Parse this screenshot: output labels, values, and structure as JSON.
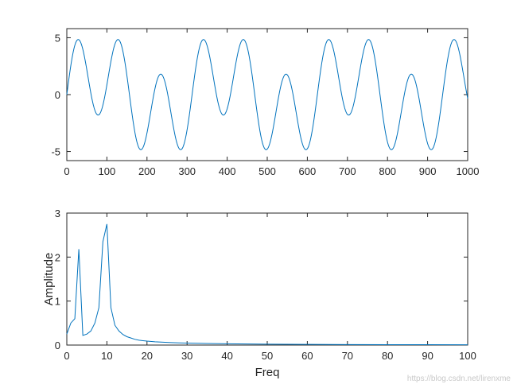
{
  "chart_data": [
    {
      "type": "line",
      "title": "",
      "xlabel": "",
      "ylabel": "",
      "xlim": [
        0,
        1000
      ],
      "ylim": [
        -5.8,
        5.8
      ],
      "x_ticks": [
        "0",
        "100",
        "200",
        "300",
        "400",
        "500",
        "600",
        "700",
        "800",
        "900",
        "1000"
      ],
      "y_ticks": [
        "-5",
        "0",
        "5"
      ],
      "grid": false,
      "color": "#0072BD",
      "series": [
        {
          "x_range": [
            0,
            1000
          ],
          "points": 1000,
          "components": [
            {
              "amplitude": 2.0,
              "cycles_per_1000": 3.2
            },
            {
              "amplitude": 3.8,
              "cycles_per_1000": 9.6
            }
          ]
        }
      ]
    },
    {
      "type": "line",
      "title": "",
      "xlabel": "Freq",
      "ylabel": "Amplitude",
      "xlim": [
        0,
        100
      ],
      "ylim": [
        0,
        3
      ],
      "x_ticks": [
        "0",
        "10",
        "20",
        "30",
        "40",
        "50",
        "60",
        "70",
        "80",
        "90",
        "100"
      ],
      "y_ticks": [
        "0",
        "1",
        "2",
        "3"
      ],
      "grid": false,
      "color": "#0072BD",
      "series": [
        {
          "x": [
            0,
            1,
            2,
            3,
            4,
            5,
            6,
            7,
            8,
            9,
            10,
            11,
            12,
            13,
            14,
            15,
            16,
            17,
            18,
            19,
            20,
            22,
            24,
            26,
            28,
            30,
            35,
            40,
            45,
            50,
            60,
            70,
            80,
            90,
            100
          ],
          "y": [
            0.25,
            0.5,
            0.6,
            2.18,
            0.22,
            0.25,
            0.32,
            0.5,
            0.85,
            2.35,
            2.75,
            0.85,
            0.45,
            0.32,
            0.24,
            0.19,
            0.16,
            0.13,
            0.11,
            0.1,
            0.09,
            0.075,
            0.065,
            0.056,
            0.05,
            0.045,
            0.036,
            0.03,
            0.025,
            0.021,
            0.016,
            0.012,
            0.01,
            0.008,
            0.007
          ]
        }
      ]
    }
  ],
  "watermark": "https://blog.csdn.net/lirenxme"
}
